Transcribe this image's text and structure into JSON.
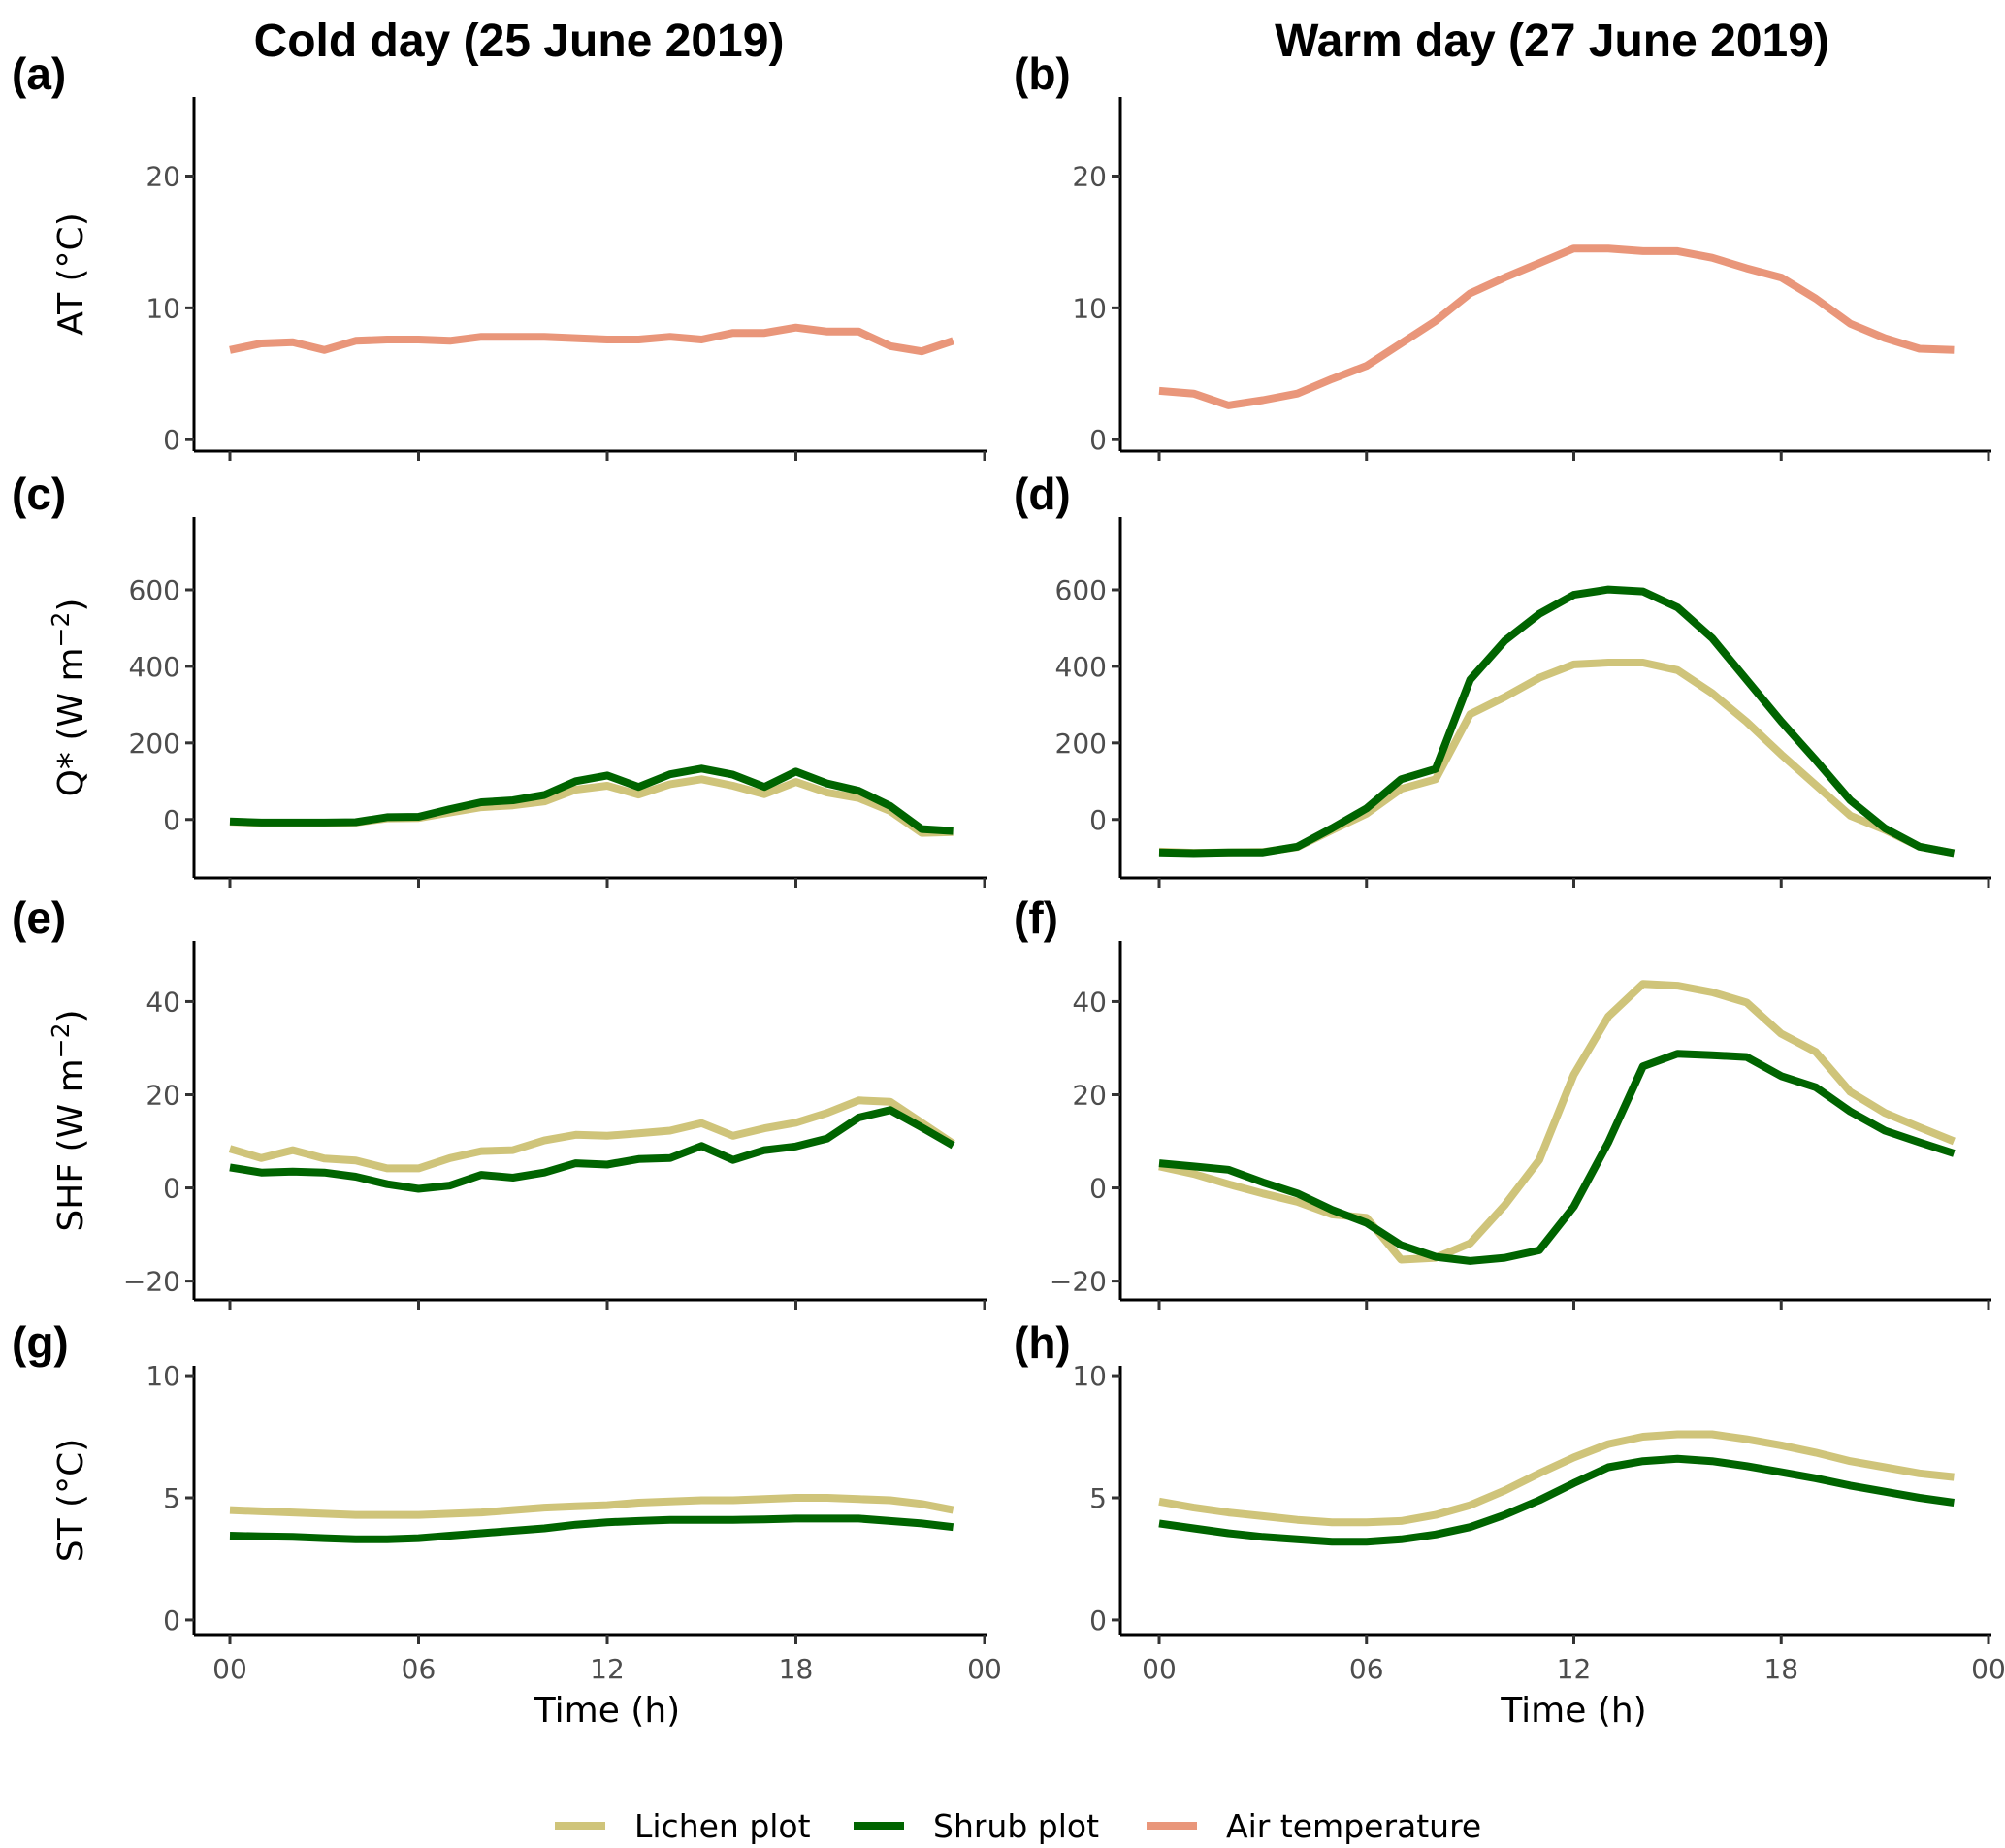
{
  "chart_data": {
    "type": "line",
    "column_titles": [
      "Cold day (25 June 2019)",
      "Warm day (27 June 2019)"
    ],
    "x_ticks": [
      "00",
      "06",
      "12",
      "18",
      "00"
    ],
    "xlabel": "Time (h)",
    "x_hours": [
      0,
      1,
      2,
      3,
      4,
      5,
      6,
      7,
      8,
      9,
      10,
      11,
      12,
      13,
      14,
      15,
      16,
      17,
      18,
      19,
      20,
      21,
      22,
      23
    ],
    "colors": {
      "Lichen plot": "#CFC47A",
      "Shrub plot": "#006400",
      "Air temperature": "#E9967A"
    },
    "legend": {
      "position": "bottom",
      "entries": [
        "Lichen plot",
        "Shrub plot",
        "Air temperature"
      ]
    },
    "rows": [
      {
        "ylabel": "AT (°C)",
        "ylabel_main": "AT (°C)",
        "ylim": [
          -0.5,
          26
        ],
        "yticks": [
          0,
          10,
          20
        ],
        "ytick_labels": [
          "0",
          "10",
          "20"
        ]
      },
      {
        "ylabel": "Q* (W m−2)",
        "ylabel_main": "Q* (W m",
        "ylabel_sup": "−2",
        "ylabel_end": ")",
        "ylim": [
          -140,
          790
        ],
        "yticks": [
          0,
          200,
          400,
          600
        ],
        "ytick_labels": [
          "0",
          "200",
          "400",
          "600"
        ]
      },
      {
        "ylabel": "SHF (W m−2)",
        "ylabel_main": "SHF (W m",
        "ylabel_sup": "−2",
        "ylabel_end": ")",
        "ylim": [
          -23,
          53
        ],
        "yticks": [
          -20,
          0,
          20,
          40
        ],
        "ytick_labels": [
          "−20",
          "0",
          "20",
          "40"
        ]
      },
      {
        "ylabel": "ST (°C)",
        "ylabel_main": "ST (°C)",
        "ylim": [
          -0.4,
          10.4
        ],
        "yticks": [
          0,
          5,
          10
        ],
        "ytick_labels": [
          "0",
          "5",
          "10"
        ]
      }
    ],
    "panels": [
      {
        "tag": "(a)",
        "row": 0,
        "col": 0,
        "series": [
          {
            "name": "Air temperature",
            "values": [
              6.8,
              7.3,
              7.4,
              6.8,
              7.5,
              7.6,
              7.6,
              7.5,
              7.8,
              7.8,
              7.8,
              7.7,
              7.6,
              7.6,
              7.8,
              7.6,
              8.1,
              8.1,
              8.5,
              8.2,
              8.2,
              7.1,
              6.7,
              7.5
            ]
          }
        ]
      },
      {
        "tag": "(b)",
        "row": 0,
        "col": 1,
        "series": [
          {
            "name": "Air temperature",
            "values": [
              3.7,
              3.5,
              2.6,
              3.0,
              3.5,
              4.6,
              5.6,
              7.3,
              9.0,
              11.1,
              12.3,
              13.4,
              14.5,
              14.5,
              14.3,
              14.3,
              13.8,
              13.0,
              12.3,
              10.7,
              8.8,
              7.7,
              6.9,
              6.8
            ]
          }
        ]
      },
      {
        "tag": "(c)",
        "row": 1,
        "col": 0,
        "series": [
          {
            "name": "Lichen plot",
            "values": [
              -6,
              -9,
              -9,
              -9,
              -8,
              3,
              4,
              18,
              32,
              37,
              47,
              78,
              88,
              65,
              92,
              105,
              88,
              66,
              98,
              70,
              56,
              22,
              -35,
              -33
            ]
          },
          {
            "name": "Shrub plot",
            "values": [
              -5,
              -8,
              -8,
              -8,
              -7,
              6,
              7,
              27,
              45,
              50,
              64,
              100,
              115,
              85,
              118,
              133,
              117,
              85,
              125,
              94,
              75,
              35,
              -25,
              -30
            ]
          }
        ]
      },
      {
        "tag": "(d)",
        "row": 1,
        "col": 1,
        "series": [
          {
            "name": "Lichen plot",
            "values": [
              -84,
              -87,
              -86,
              -85,
              -72,
              -28,
              15,
              80,
              105,
              275,
              320,
              370,
              405,
              410,
              410,
              390,
              330,
              255,
              170,
              90,
              10,
              -27,
              -71,
              -88
            ]
          },
          {
            "name": "Shrub plot",
            "values": [
              -86,
              -88,
              -86,
              -86,
              -71,
              -23,
              29,
              105,
              132,
              365,
              467,
              537,
              587,
              601,
              596,
              554,
              474,
              365,
              256,
              155,
              50,
              -23,
              -71,
              -88
            ]
          }
        ]
      },
      {
        "tag": "(e)",
        "row": 2,
        "col": 0,
        "series": [
          {
            "name": "Lichen plot",
            "values": [
              8.4,
              6.4,
              8.1,
              6.3,
              5.9,
              4.2,
              4.2,
              6.4,
              7.9,
              8.1,
              10.2,
              11.4,
              11.2,
              11.7,
              12.3,
              13.9,
              11.2,
              12.8,
              14.0,
              16.1,
              18.8,
              18.5,
              14.0,
              9.5
            ]
          },
          {
            "name": "Shrub plot",
            "values": [
              4.4,
              3.3,
              3.5,
              3.3,
              2.4,
              0.8,
              -0.2,
              0.5,
              2.8,
              2.2,
              3.3,
              5.3,
              5.0,
              6.2,
              6.4,
              9.0,
              6.0,
              8.1,
              8.9,
              10.6,
              15.1,
              16.7,
              13.0,
              9.1
            ]
          }
        ]
      },
      {
        "tag": "(f)",
        "row": 2,
        "col": 1,
        "series": [
          {
            "name": "Lichen plot",
            "values": [
              4.6,
              3.0,
              0.8,
              -1.2,
              -3.0,
              -5.7,
              -6.4,
              -15.4,
              -15.0,
              -11.9,
              -3.7,
              6.0,
              24.3,
              36.8,
              43.8,
              43.4,
              42.0,
              39.8,
              33.1,
              29.2,
              20.6,
              16.1,
              13.0,
              10.0
            ]
          },
          {
            "name": "Shrub plot",
            "values": [
              5.3,
              4.6,
              3.9,
              1.2,
              -1.2,
              -4.7,
              -7.5,
              -12.3,
              -14.8,
              -15.7,
              -15.0,
              -13.4,
              -4.0,
              9.8,
              26.1,
              28.8,
              28.5,
              28.1,
              24.0,
              21.6,
              16.4,
              12.3,
              9.8,
              7.4
            ]
          }
        ]
      },
      {
        "tag": "(g)",
        "row": 3,
        "col": 0,
        "series": [
          {
            "name": "Lichen plot",
            "values": [
              4.5,
              4.45,
              4.4,
              4.35,
              4.3,
              4.3,
              4.3,
              4.35,
              4.4,
              4.5,
              4.6,
              4.65,
              4.7,
              4.8,
              4.85,
              4.9,
              4.9,
              4.95,
              5.0,
              5.0,
              4.95,
              4.9,
              4.75,
              4.5
            ]
          },
          {
            "name": "Shrub plot",
            "values": [
              3.45,
              3.42,
              3.4,
              3.35,
              3.3,
              3.3,
              3.35,
              3.45,
              3.55,
              3.65,
              3.75,
              3.9,
              4.0,
              4.05,
              4.1,
              4.1,
              4.1,
              4.12,
              4.15,
              4.15,
              4.15,
              4.05,
              3.95,
              3.8
            ]
          }
        ]
      },
      {
        "tag": "(h)",
        "row": 3,
        "col": 1,
        "series": [
          {
            "name": "Lichen plot",
            "values": [
              4.85,
              4.6,
              4.4,
              4.25,
              4.1,
              4.0,
              4.0,
              4.05,
              4.3,
              4.7,
              5.3,
              6.0,
              6.65,
              7.2,
              7.5,
              7.6,
              7.6,
              7.4,
              7.15,
              6.85,
              6.5,
              6.25,
              6.0,
              5.85
            ]
          },
          {
            "name": "Shrub plot",
            "values": [
              3.95,
              3.75,
              3.55,
              3.4,
              3.3,
              3.2,
              3.2,
              3.3,
              3.5,
              3.8,
              4.3,
              4.9,
              5.6,
              6.25,
              6.5,
              6.6,
              6.5,
              6.3,
              6.05,
              5.8,
              5.5,
              5.25,
              5.0,
              4.8
            ]
          }
        ]
      }
    ]
  }
}
